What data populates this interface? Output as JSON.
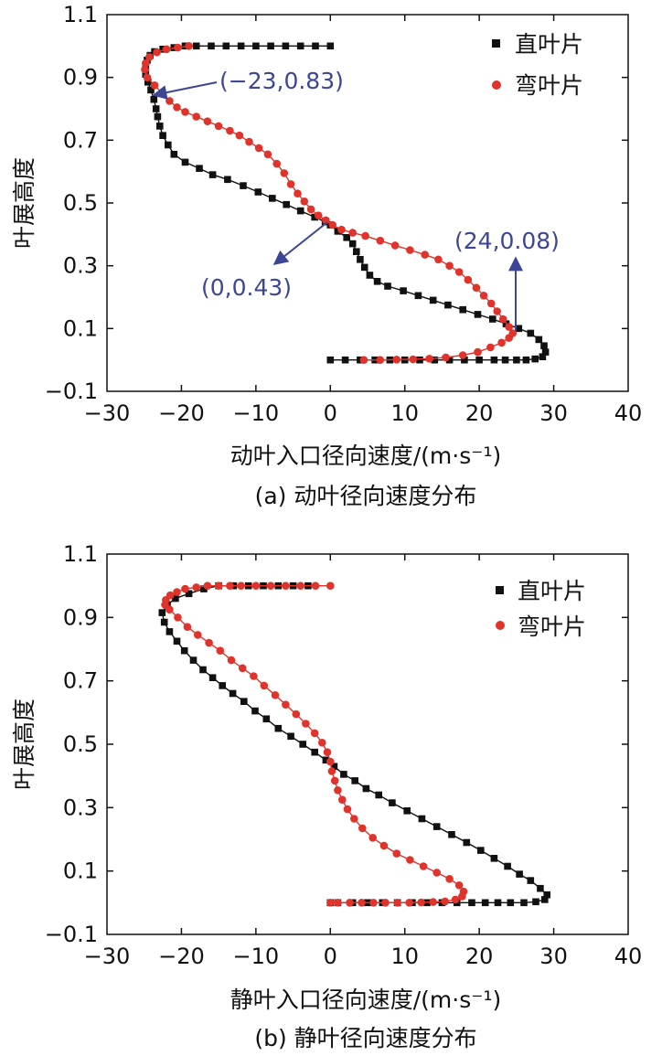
{
  "colors": {
    "series_straight": "#111111",
    "series_curved": "#e0332b",
    "annotation": "#3d4694",
    "frame": "#111111"
  },
  "chart_data": [
    {
      "type": "line",
      "caption": "(a) 动叶径向速度分布",
      "xlabel": "动叶入口径向速度/(m·s⁻¹)",
      "ylabel": "叶展高度",
      "xlim": [
        -30,
        40
      ],
      "ylim": [
        -0.1,
        1.1
      ],
      "xticks": [
        "−30",
        "−20",
        "−10",
        "0",
        "10",
        "20",
        "30",
        "40"
      ],
      "yticks": [
        "−0.1",
        "0.1",
        "0.3",
        "0.5",
        "0.7",
        "0.9",
        "1.1"
      ],
      "grid": false,
      "legend_position": "top-right",
      "series": [
        {
          "name": "直叶片",
          "marker": "square",
          "points": [
            [
              0,
              1.0
            ],
            [
              -2,
              1.0
            ],
            [
              -4,
              1.0
            ],
            [
              -6,
              1.0
            ],
            [
              -8,
              1.0
            ],
            [
              -10,
              1.0
            ],
            [
              -12,
              1.0
            ],
            [
              -14,
              1.0
            ],
            [
              -16,
              1.0
            ],
            [
              -18,
              1.0
            ],
            [
              -19.5,
              1.0
            ],
            [
              -21,
              0.995
            ],
            [
              -22.5,
              0.99
            ],
            [
              -23.6,
              0.982
            ],
            [
              -24.2,
              0.97
            ],
            [
              -24.6,
              0.955
            ],
            [
              -24.8,
              0.935
            ],
            [
              -24.8,
              0.91
            ],
            [
              -24.5,
              0.885
            ],
            [
              -24.1,
              0.86
            ],
            [
              -23.7,
              0.83
            ],
            [
              -23.4,
              0.8
            ],
            [
              -23.2,
              0.775
            ],
            [
              -22.9,
              0.745
            ],
            [
              -22.5,
              0.715
            ],
            [
              -21.8,
              0.685
            ],
            [
              -21,
              0.655
            ],
            [
              -19.5,
              0.63
            ],
            [
              -17.6,
              0.61
            ],
            [
              -15.8,
              0.59
            ],
            [
              -13.8,
              0.575
            ],
            [
              -11.7,
              0.555
            ],
            [
              -9.7,
              0.535
            ],
            [
              -7.8,
              0.515
            ],
            [
              -5.9,
              0.495
            ],
            [
              -4,
              0.475
            ],
            [
              -2.1,
              0.455
            ],
            [
              -0.7,
              0.44
            ],
            [
              0,
              0.43
            ],
            [
              1,
              0.41
            ],
            [
              2.2,
              0.39
            ],
            [
              3,
              0.37
            ],
            [
              3.5,
              0.345
            ],
            [
              4,
              0.32
            ],
            [
              4.6,
              0.295
            ],
            [
              5.3,
              0.27
            ],
            [
              6.3,
              0.25
            ],
            [
              7.7,
              0.235
            ],
            [
              9.8,
              0.22
            ],
            [
              11.8,
              0.205
            ],
            [
              13.8,
              0.19
            ],
            [
              15.8,
              0.175
            ],
            [
              17.8,
              0.16
            ],
            [
              19.8,
              0.145
            ],
            [
              21.8,
              0.13
            ],
            [
              23.6,
              0.115
            ],
            [
              25.3,
              0.1
            ],
            [
              26.9,
              0.085
            ],
            [
              28,
              0.065
            ],
            [
              28.7,
              0.045
            ],
            [
              28.9,
              0.025
            ],
            [
              28.5,
              0.01
            ],
            [
              27.5,
              0.003
            ],
            [
              26.3,
              0.0
            ],
            [
              25,
              0.0
            ],
            [
              23.5,
              0.0
            ],
            [
              22,
              0.0
            ],
            [
              20,
              0.0
            ],
            [
              18,
              0.0
            ],
            [
              16,
              0.0
            ],
            [
              14,
              0.0
            ],
            [
              12,
              0.0
            ],
            [
              10,
              0.0
            ],
            [
              8,
              0.0
            ],
            [
              6,
              0.0
            ],
            [
              4,
              0.0
            ],
            [
              2,
              0.0
            ],
            [
              0,
              0.0
            ]
          ]
        },
        {
          "name": "弯叶片",
          "marker": "circle",
          "points": [
            [
              -19,
              1.0
            ],
            [
              -20.5,
              0.995
            ],
            [
              -22,
              0.99
            ],
            [
              -23.3,
              0.98
            ],
            [
              -24.3,
              0.965
            ],
            [
              -24.8,
              0.945
            ],
            [
              -24.9,
              0.925
            ],
            [
              -24.6,
              0.9
            ],
            [
              -23.6,
              0.875
            ],
            [
              -22.6,
              0.85
            ],
            [
              -21.6,
              0.825
            ],
            [
              -20.6,
              0.805
            ],
            [
              -19.5,
              0.79
            ],
            [
              -18,
              0.775
            ],
            [
              -16.5,
              0.76
            ],
            [
              -15,
              0.745
            ],
            [
              -13.5,
              0.73
            ],
            [
              -12.2,
              0.715
            ],
            [
              -10.9,
              0.695
            ],
            [
              -9.6,
              0.675
            ],
            [
              -8.4,
              0.655
            ],
            [
              -7.2,
              0.625
            ],
            [
              -6.2,
              0.595
            ],
            [
              -5.3,
              0.56
            ],
            [
              -4.4,
              0.53
            ],
            [
              -3.5,
              0.505
            ],
            [
              -2.6,
              0.48
            ],
            [
              -1.6,
              0.46
            ],
            [
              -0.6,
              0.445
            ],
            [
              0.3,
              0.43
            ],
            [
              1.5,
              0.415
            ],
            [
              3,
              0.405
            ],
            [
              4.7,
              0.395
            ],
            [
              6.7,
              0.38
            ],
            [
              8.7,
              0.365
            ],
            [
              10.7,
              0.35
            ],
            [
              12.7,
              0.335
            ],
            [
              14.5,
              0.32
            ],
            [
              16,
              0.3
            ],
            [
              17.3,
              0.28
            ],
            [
              18.5,
              0.255
            ],
            [
              19.6,
              0.23
            ],
            [
              20.6,
              0.205
            ],
            [
              21.6,
              0.18
            ],
            [
              22.4,
              0.155
            ],
            [
              23.2,
              0.13
            ],
            [
              24,
              0.105
            ],
            [
              24.5,
              0.085
            ],
            [
              24,
              0.07
            ],
            [
              23,
              0.055
            ],
            [
              21.5,
              0.04
            ],
            [
              19.8,
              0.025
            ],
            [
              17.8,
              0.015
            ],
            [
              15.5,
              0.008
            ],
            [
              13.3,
              0.004
            ],
            [
              11.1,
              0.002
            ],
            [
              8.9,
              0.001
            ],
            [
              6.7,
              0.0
            ],
            [
              4.5,
              0.0
            ]
          ]
        }
      ],
      "annotations": [
        {
          "text": "(−23,0.83)",
          "x": -23,
          "y": 0.83
        },
        {
          "text": "(0,0.43)",
          "x": 0,
          "y": 0.43
        },
        {
          "text": "(24,0.08)",
          "x": 24.5,
          "y": 0.085
        }
      ]
    },
    {
      "type": "line",
      "caption": "(b) 静叶径向速度分布",
      "xlabel": "静叶入口径向速度/(m·s⁻¹)",
      "ylabel": "叶展高度",
      "xlim": [
        -30,
        40
      ],
      "ylim": [
        -0.1,
        1.1
      ],
      "xticks": [
        "−30",
        "−20",
        "−10",
        "0",
        "10",
        "20",
        "30",
        "40"
      ],
      "yticks": [
        "−0.1",
        "0.1",
        "0.3",
        "0.5",
        "0.7",
        "0.9",
        "1.1"
      ],
      "grid": false,
      "legend_position": "top-right",
      "series": [
        {
          "name": "直叶片",
          "marker": "square",
          "points": [
            [
              -3,
              1.0
            ],
            [
              -5,
              1.0
            ],
            [
              -7,
              1.0
            ],
            [
              -9,
              1.0
            ],
            [
              -11,
              1.0
            ],
            [
              -13,
              1.0
            ],
            [
              -15,
              1.0
            ],
            [
              -17,
              0.99
            ],
            [
              -19,
              0.975
            ],
            [
              -20.8,
              0.96
            ],
            [
              -21.9,
              0.94
            ],
            [
              -22.6,
              0.915
            ],
            [
              -22.3,
              0.885
            ],
            [
              -21.6,
              0.855
            ],
            [
              -20.6,
              0.825
            ],
            [
              -19.6,
              0.795
            ],
            [
              -18.4,
              0.765
            ],
            [
              -17.1,
              0.735
            ],
            [
              -15.8,
              0.71
            ],
            [
              -14.5,
              0.685
            ],
            [
              -13.1,
              0.66
            ],
            [
              -11.6,
              0.635
            ],
            [
              -10.1,
              0.605
            ],
            [
              -8.6,
              0.58
            ],
            [
              -7,
              0.55
            ],
            [
              -5.3,
              0.525
            ],
            [
              -3.7,
              0.5
            ],
            [
              -2.1,
              0.475
            ],
            [
              -0.6,
              0.45
            ],
            [
              0.5,
              0.43
            ],
            [
              1.8,
              0.405
            ],
            [
              3.3,
              0.385
            ],
            [
              4.8,
              0.36
            ],
            [
              6.5,
              0.34
            ],
            [
              8.3,
              0.315
            ],
            [
              10.3,
              0.29
            ],
            [
              12.3,
              0.265
            ],
            [
              14.3,
              0.24
            ],
            [
              16.3,
              0.215
            ],
            [
              18.3,
              0.19
            ],
            [
              20.2,
              0.165
            ],
            [
              22,
              0.14
            ],
            [
              23.8,
              0.115
            ],
            [
              25.4,
              0.09
            ],
            [
              26.9,
              0.07
            ],
            [
              28.2,
              0.045
            ],
            [
              29.1,
              0.025
            ],
            [
              28.8,
              0.01
            ],
            [
              27.6,
              0.003
            ],
            [
              26,
              0.0
            ],
            [
              24.2,
              0.0
            ],
            [
              22.5,
              0.0
            ],
            [
              20.8,
              0.0
            ],
            [
              19,
              0.0
            ],
            [
              17,
              0.0
            ],
            [
              15,
              0.0
            ],
            [
              13,
              0.0
            ],
            [
              11,
              0.0
            ],
            [
              9,
              0.0
            ],
            [
              7,
              0.0
            ],
            [
              5,
              0.0
            ],
            [
              3,
              0.0
            ],
            [
              1,
              0.0
            ],
            [
              0,
              0.0
            ]
          ]
        },
        {
          "name": "弯叶片",
          "marker": "circle",
          "points": [
            [
              0,
              1.0
            ],
            [
              -2,
              1.0
            ],
            [
              -4,
              1.0
            ],
            [
              -6,
              1.0
            ],
            [
              -8,
              1.0
            ],
            [
              -10,
              1.0
            ],
            [
              -12,
              1.0
            ],
            [
              -13.5,
              1.0
            ],
            [
              -15,
              1.0
            ],
            [
              -16.5,
              1.0
            ],
            [
              -18,
              0.995
            ],
            [
              -19.5,
              0.99
            ],
            [
              -20.6,
              0.98
            ],
            [
              -21.5,
              0.97
            ],
            [
              -22.1,
              0.955
            ],
            [
              -22.2,
              0.94
            ],
            [
              -21.6,
              0.925
            ],
            [
              -20.5,
              0.9
            ],
            [
              -19.2,
              0.87
            ],
            [
              -17.8,
              0.845
            ],
            [
              -16.3,
              0.82
            ],
            [
              -14.8,
              0.795
            ],
            [
              -13.3,
              0.765
            ],
            [
              -11.8,
              0.74
            ],
            [
              -10.3,
              0.715
            ],
            [
              -8.9,
              0.685
            ],
            [
              -7.4,
              0.655
            ],
            [
              -6,
              0.625
            ],
            [
              -4.6,
              0.595
            ],
            [
              -3.3,
              0.565
            ],
            [
              -2.1,
              0.535
            ],
            [
              -1.1,
              0.505
            ],
            [
              -0.4,
              0.475
            ],
            [
              0,
              0.445
            ],
            [
              0.2,
              0.415
            ],
            [
              0.6,
              0.385
            ],
            [
              1,
              0.355
            ],
            [
              1.6,
              0.325
            ],
            [
              2.3,
              0.295
            ],
            [
              3.2,
              0.265
            ],
            [
              4.3,
              0.235
            ],
            [
              5.7,
              0.205
            ],
            [
              7.2,
              0.18
            ],
            [
              8.9,
              0.155
            ],
            [
              10.7,
              0.135
            ],
            [
              12.5,
              0.115
            ],
            [
              14.3,
              0.095
            ],
            [
              16,
              0.075
            ],
            [
              17.3,
              0.055
            ],
            [
              17.9,
              0.035
            ],
            [
              17.7,
              0.02
            ],
            [
              16.8,
              0.01
            ],
            [
              15.4,
              0.004
            ],
            [
              13.8,
              0.002
            ],
            [
              12.2,
              0.001
            ],
            [
              10.6,
              0.0
            ],
            [
              9,
              0.0
            ],
            [
              7.4,
              0.0
            ],
            [
              5.8,
              0.0
            ],
            [
              4.2,
              0.0
            ],
            [
              2.6,
              0.0
            ],
            [
              1,
              0.0
            ],
            [
              0,
              0.0
            ]
          ]
        }
      ],
      "annotations": []
    }
  ]
}
